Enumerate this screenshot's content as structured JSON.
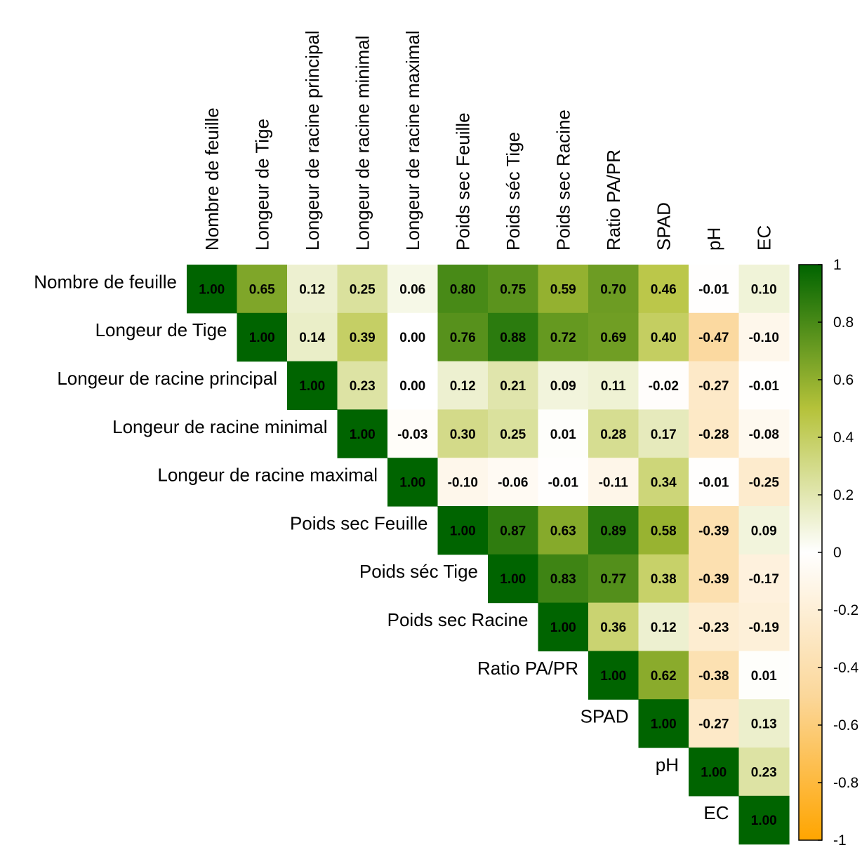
{
  "chart_data": {
    "type": "heatmap",
    "variables": [
      "Nombre de feuille",
      "Longeur de Tige",
      "Longeur de racine principal",
      "Longeur de racine minimal",
      "Longeur de racine maximal",
      "Poids  sec Feuille",
      "Poids  séc Tige",
      "Poids  sec Racine",
      "Ratio PA/PR",
      "SPAD",
      "pH",
      "EC"
    ],
    "matrix_upper": [
      [
        "1.00",
        "0.65",
        "0.12",
        "0.25",
        "0.06",
        "0.80",
        "0.75",
        "0.59",
        "0.70",
        "0.46",
        "-0.01",
        "0.10"
      ],
      [
        null,
        "1.00",
        "0.14",
        "0.39",
        "0.00",
        "0.76",
        "0.88",
        "0.72",
        "0.69",
        "0.40",
        "-0.47",
        "-0.10"
      ],
      [
        null,
        null,
        "1.00",
        "0.23",
        "0.00",
        "0.12",
        "0.21",
        "0.09",
        "0.11",
        "-0.02",
        "-0.27",
        "-0.01"
      ],
      [
        null,
        null,
        null,
        "1.00",
        "-0.03",
        "0.30",
        "0.25",
        "0.01",
        "0.28",
        "0.17",
        "-0.28",
        "-0.08"
      ],
      [
        null,
        null,
        null,
        null,
        "1.00",
        "-0.10",
        "-0.06",
        "-0.01",
        "-0.11",
        "0.34",
        "-0.01",
        "-0.25"
      ],
      [
        null,
        null,
        null,
        null,
        null,
        "1.00",
        "0.87",
        "0.63",
        "0.89",
        "0.58",
        "-0.39",
        "0.09"
      ],
      [
        null,
        null,
        null,
        null,
        null,
        null,
        "1.00",
        "0.83",
        "0.77",
        "0.38",
        "-0.39",
        "-0.17"
      ],
      [
        null,
        null,
        null,
        null,
        null,
        null,
        null,
        "1.00",
        "0.36",
        "0.12",
        "-0.23",
        "-0.19"
      ],
      [
        null,
        null,
        null,
        null,
        null,
        null,
        null,
        null,
        "1.00",
        "0.62",
        "-0.38",
        "0.01"
      ],
      [
        null,
        null,
        null,
        null,
        null,
        null,
        null,
        null,
        null,
        "1.00",
        "-0.27",
        "0.13"
      ],
      [
        null,
        null,
        null,
        null,
        null,
        null,
        null,
        null,
        null,
        null,
        "1.00",
        "0.23"
      ],
      [
        null,
        null,
        null,
        null,
        null,
        null,
        null,
        null,
        null,
        null,
        null,
        "1.00"
      ]
    ],
    "color_scale": {
      "range": [
        -1,
        1
      ],
      "ticks": [
        "1",
        "0.8",
        "0.6",
        "0.4",
        "0.2",
        "0",
        "-0.2",
        "-0.4",
        "-0.6",
        "-0.8",
        "-1"
      ],
      "stops": [
        {
          "value": -1,
          "color": "#ffa500"
        },
        {
          "value": -0.5,
          "color": "#fbd79a"
        },
        {
          "value": 0,
          "color": "#ffffff"
        },
        {
          "value": 0.5,
          "color": "#b5c23a"
        },
        {
          "value": 1,
          "color": "#006400"
        }
      ]
    }
  }
}
